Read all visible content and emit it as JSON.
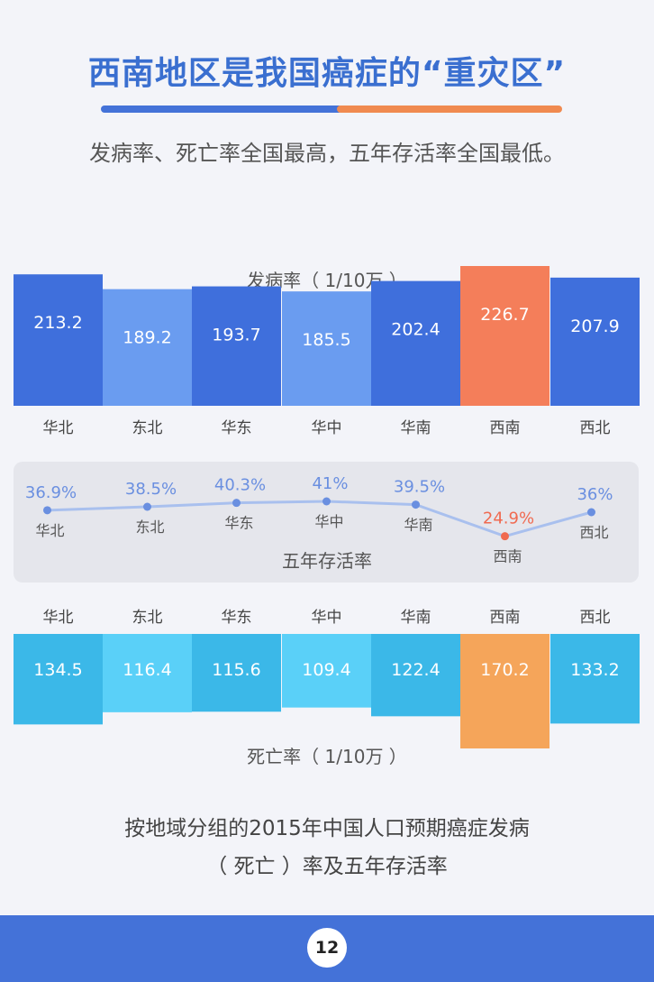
{
  "header": {
    "title": "西南地区是我国癌症的“重灾区”",
    "subtitle": "发病率、死亡率全国最高，五年存活率全国最低。"
  },
  "chart_data": [
    {
      "type": "bar",
      "title": "发病率（ 1/10万 ）",
      "categories": [
        "华北",
        "东北",
        "华东",
        "华中",
        "华南",
        "西南",
        "西北"
      ],
      "values": [
        213.2,
        189.2,
        193.7,
        185.5,
        202.4,
        226.7,
        207.9
      ],
      "value_labels": [
        "213.2",
        "189.2",
        "193.7",
        "185.5",
        "202.4",
        "226.7",
        "207.9"
      ],
      "highlight": "西南",
      "colors": {
        "primary": "#3f6fdc",
        "secondary": "#6a9cf0",
        "highlight": "#f47e5a"
      }
    },
    {
      "type": "line",
      "title": "五年存活率",
      "categories": [
        "华北",
        "东北",
        "华东",
        "华中",
        "华南",
        "西南",
        "西北"
      ],
      "values": [
        36.9,
        38.5,
        40.3,
        41,
        39.5,
        24.9,
        36
      ],
      "value_labels": [
        "36.9%",
        "38.5%",
        "40.3%",
        "41%",
        "39.5%",
        "24.9%",
        "36%"
      ],
      "highlight": "西南",
      "colors": {
        "line": "#a9c0ee",
        "point": "#6a8fe0",
        "label": "#6a8fe0",
        "highlight": "#f06a50"
      }
    },
    {
      "type": "bar",
      "title": "死亡率（ 1/10万 ）",
      "categories": [
        "华北",
        "东北",
        "华东",
        "华中",
        "华南",
        "西南",
        "西北"
      ],
      "values": [
        134.5,
        116.4,
        115.6,
        109.4,
        122.4,
        170.2,
        133.2
      ],
      "value_labels": [
        "134.5",
        "116.4",
        "115.6",
        "109.4",
        "122.4",
        "170.2",
        "133.2"
      ],
      "highlight": "西南",
      "colors": {
        "primary": "#3bb8e8",
        "secondary": "#5ad0f8",
        "highlight": "#f5a55a"
      }
    }
  ],
  "caption": {
    "line1": "按地域分组的2015年中国人口预期癌症发病",
    "line2": "（ 死亡 ）率及五年存活率"
  },
  "footer": {
    "page_number": "12"
  }
}
